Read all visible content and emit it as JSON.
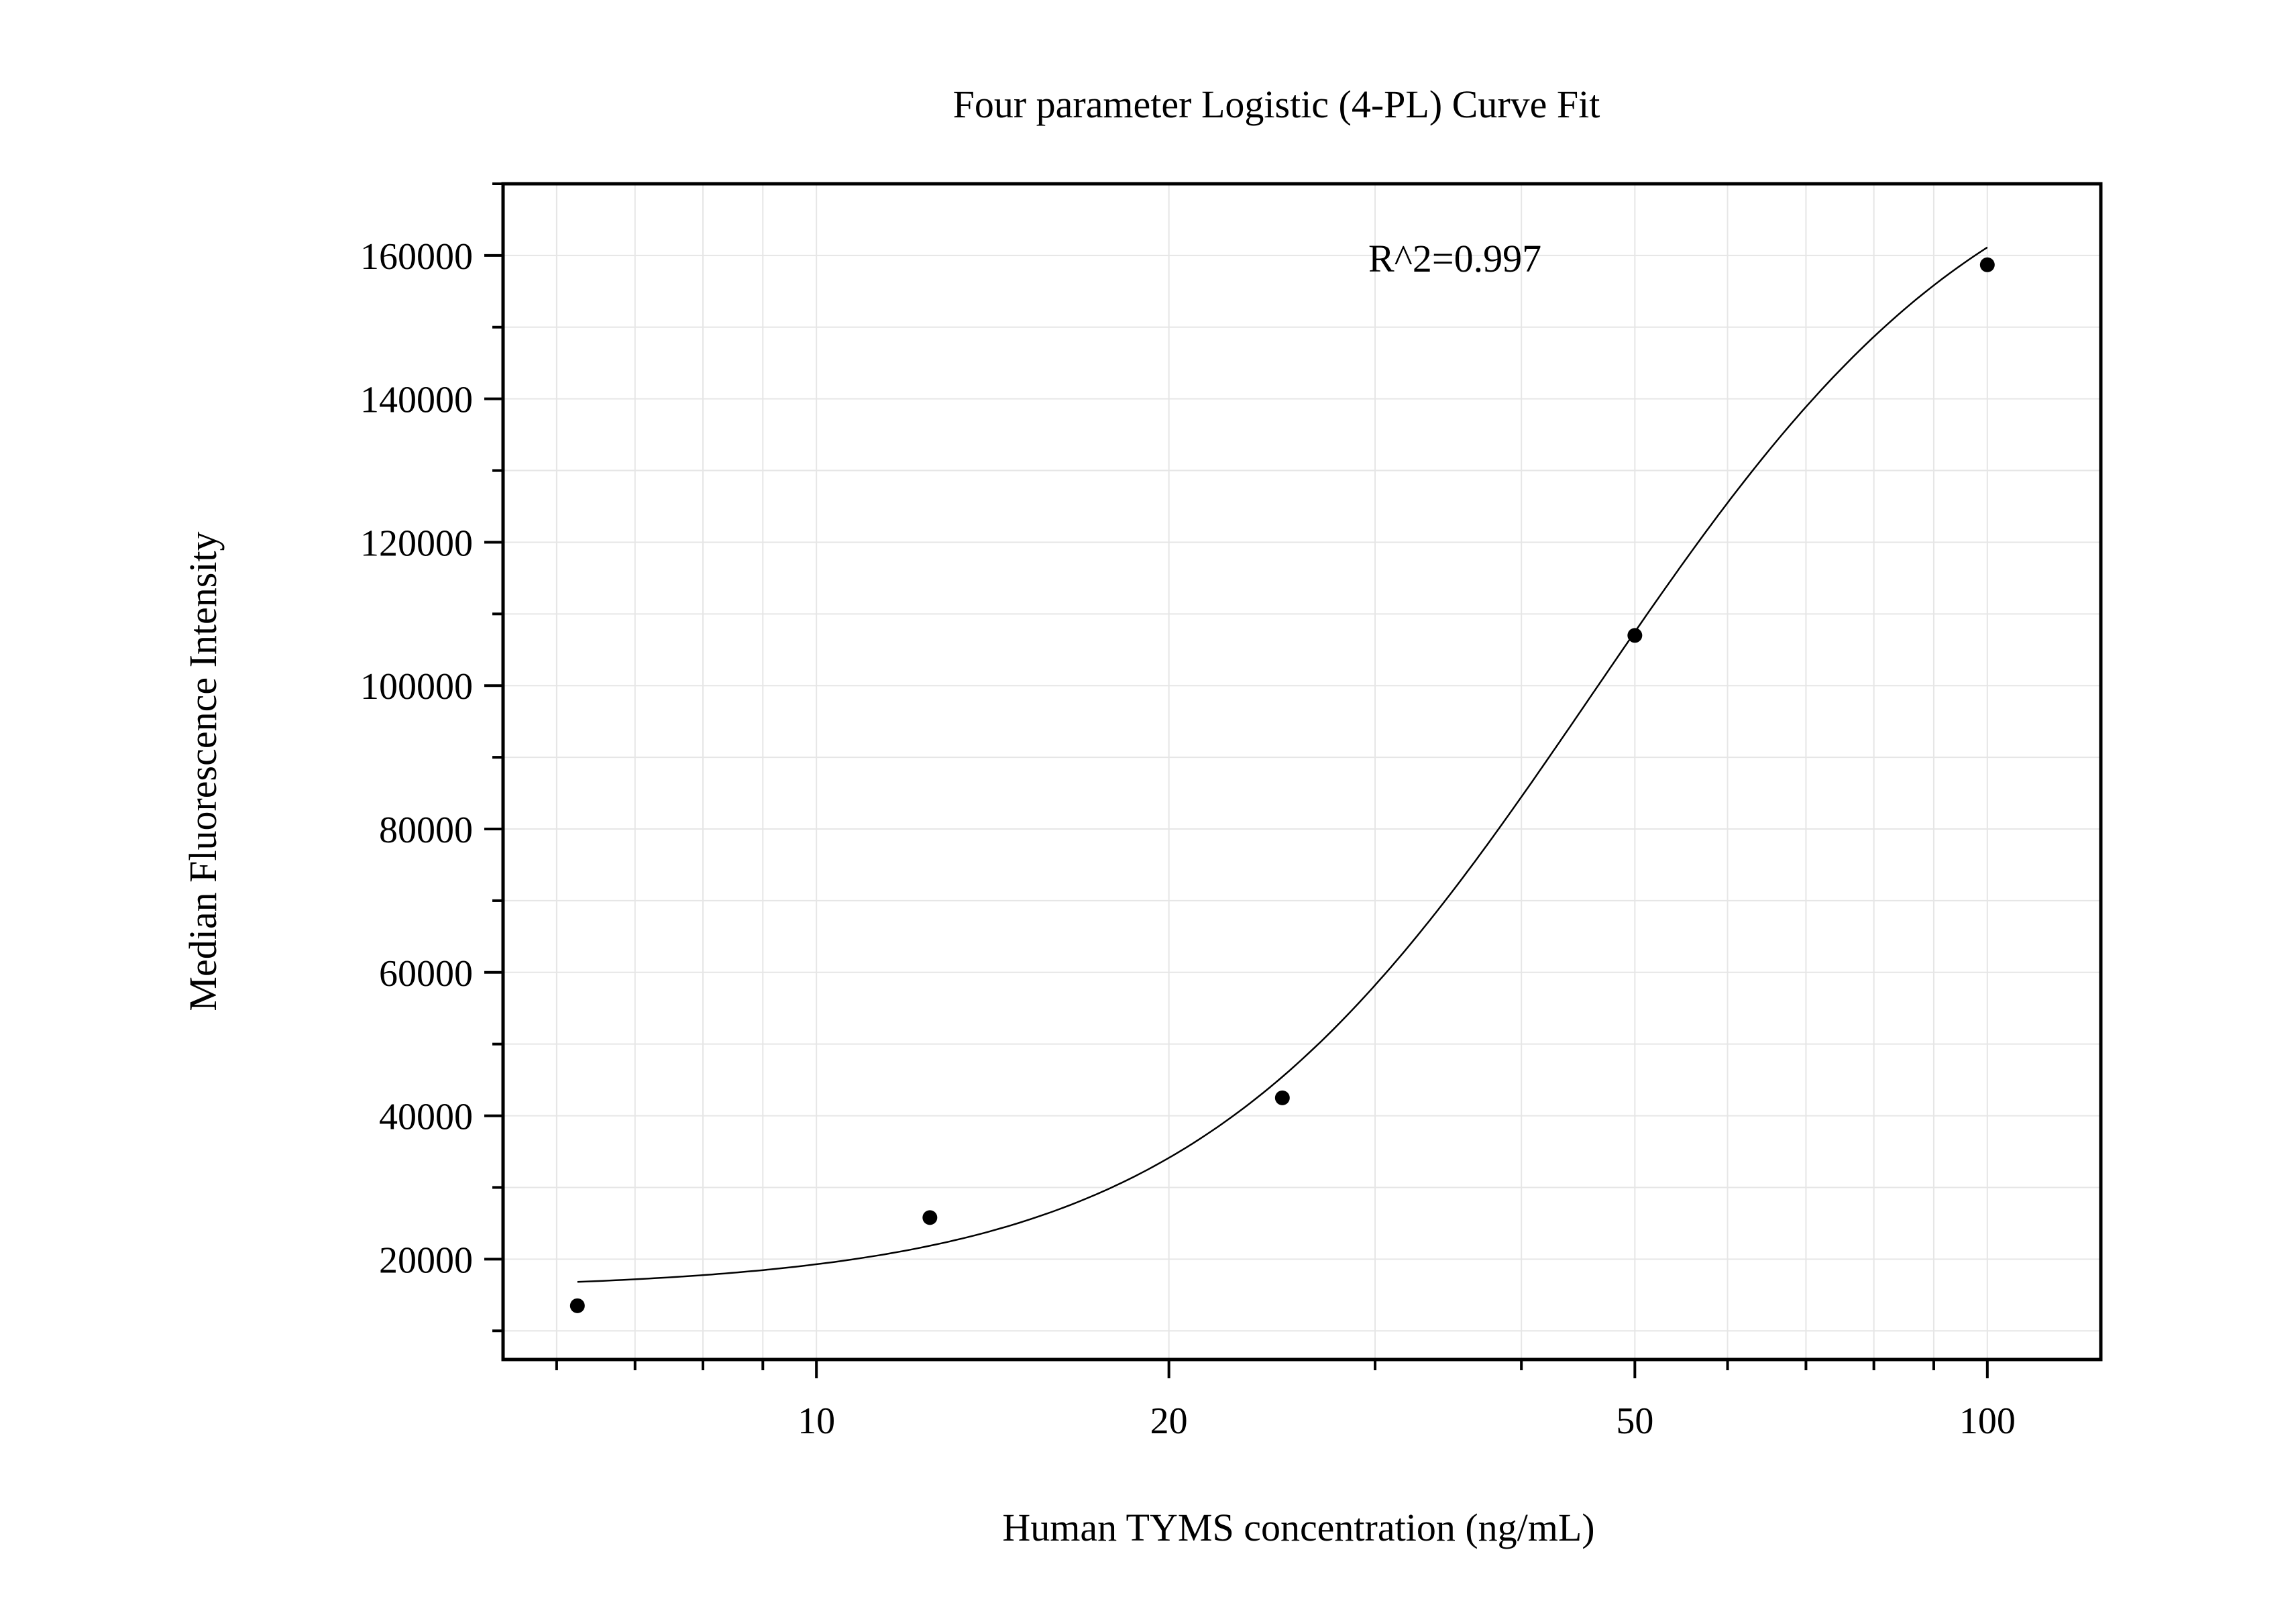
{
  "chart_data": {
    "type": "scatter",
    "title": "Four parameter Logistic (4-PL) Curve Fit",
    "xlabel": "Human TYMS concentration (ng/mL)",
    "ylabel": "Median Fluorescence Intensity",
    "annotation": "R^2=0.997",
    "x_scale": "log",
    "xlim": [
      5.4,
      125
    ],
    "ylim": [
      6000,
      170000
    ],
    "x_ticks": [
      10,
      20,
      50,
      100
    ],
    "x_tick_labels": [
      "10",
      "20",
      "50",
      "100"
    ],
    "y_ticks": [
      20000,
      40000,
      60000,
      80000,
      100000,
      120000,
      140000,
      160000
    ],
    "y_tick_labels": [
      "20000",
      "40000",
      "60000",
      "80000",
      "100000",
      "120000",
      "140000",
      "160000"
    ],
    "grid": true,
    "points": {
      "x": [
        6.25,
        12.5,
        25,
        50,
        100
      ],
      "y": [
        13500,
        25800,
        42500,
        107000,
        158700
      ]
    },
    "fit_curve": {
      "model": "4-PL",
      "x_range": [
        6.25,
        100
      ],
      "bottom": 15700,
      "top": 182000,
      "ec50": 46,
      "hill": 2.5
    },
    "colors": {
      "points": "#000000",
      "curve": "#000000",
      "grid": "#e6e6e6",
      "frame": "#000000"
    }
  }
}
